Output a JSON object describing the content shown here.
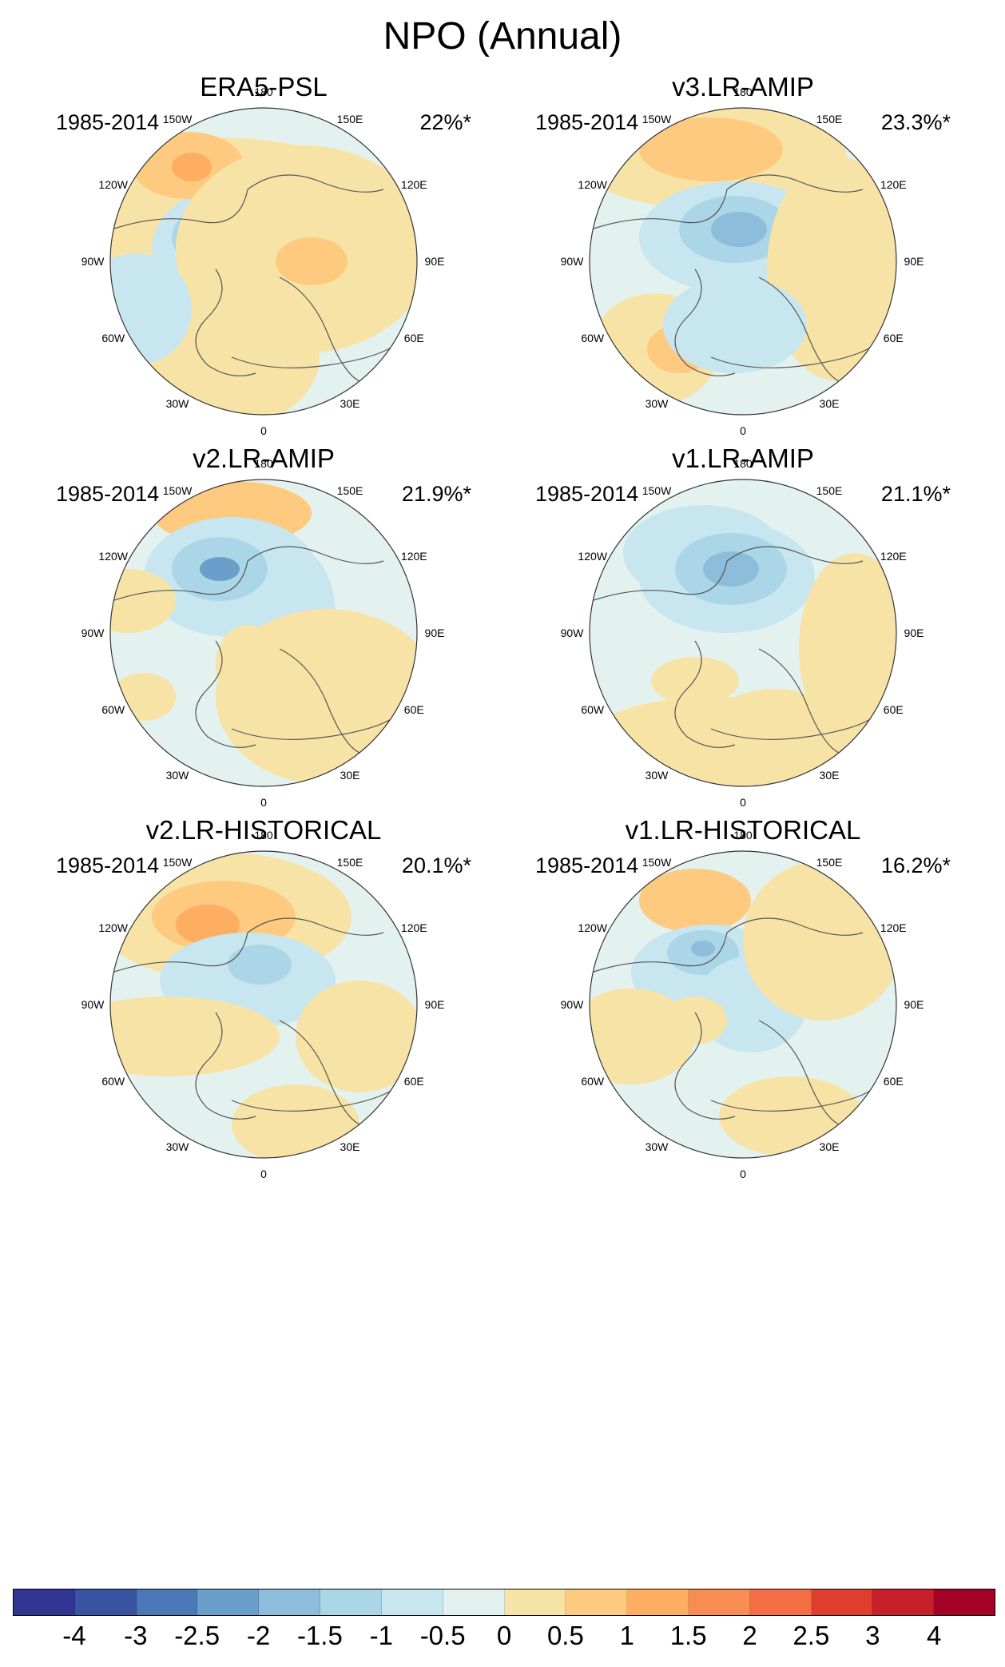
{
  "title": "NPO (Annual)",
  "lon_labels": {
    "deg180": "180",
    "w150": "150W",
    "e150": "150E",
    "w120": "120W",
    "e120": "120E",
    "w90": "90W",
    "e90": "90E",
    "w60": "60W",
    "e60": "60E",
    "w30": "30W",
    "e30": "30E",
    "deg0": "0"
  },
  "panels": [
    {
      "name": "ERA5-PSL",
      "period": "1985-2014",
      "variance": "22%*"
    },
    {
      "name": "v3.LR-AMIP",
      "period": "1985-2014",
      "variance": "23.3%*"
    },
    {
      "name": "v2.LR-AMIP",
      "period": "1985-2014",
      "variance": "21.9%*"
    },
    {
      "name": "v1.LR-AMIP",
      "period": "1985-2014",
      "variance": "21.1%*"
    },
    {
      "name": "v2.LR-HISTORICAL",
      "period": "1985-2014",
      "variance": "20.1%*"
    },
    {
      "name": "v1.LR-HISTORICAL",
      "period": "1985-2014",
      "variance": "16.2%*"
    }
  ],
  "colorbar": {
    "ticks": [
      "-4",
      "-3",
      "-2.5",
      "-2",
      "-1.5",
      "-1",
      "-0.5",
      "0",
      "0.5",
      "1",
      "1.5",
      "2",
      "2.5",
      "3",
      "4"
    ],
    "colors": [
      "#313695",
      "#3a54a4",
      "#4a78b8",
      "#6b9fcb",
      "#8dbddb",
      "#abd6e8",
      "#c8e6f0",
      "#e3f1ef",
      "#f7e3a6",
      "#fdca80",
      "#fdae61",
      "#f88d52",
      "#f46d43",
      "#df3e2e",
      "#c8202a",
      "#a50026"
    ]
  }
}
